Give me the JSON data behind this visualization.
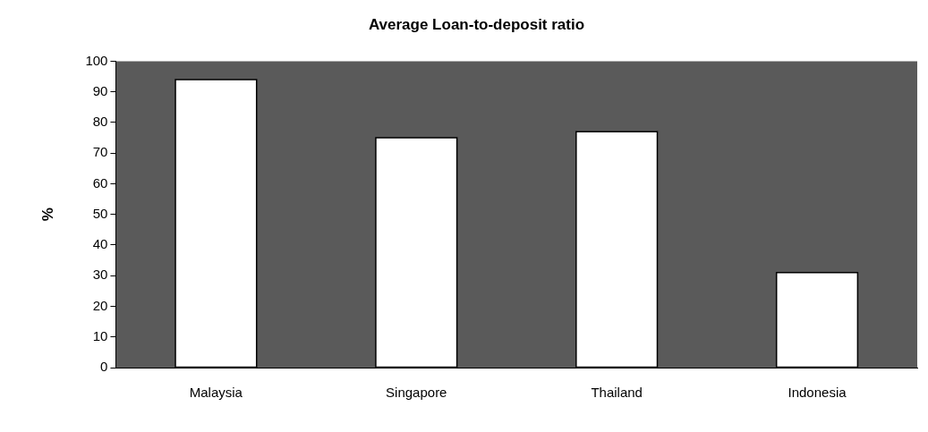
{
  "chart_data": {
    "type": "bar",
    "title": "Average Loan-to-deposit ratio",
    "ylabel": "%",
    "categories": [
      "Malaysia",
      "Singapore",
      "Thailand",
      "Indonesia"
    ],
    "values": [
      94,
      75,
      77,
      31
    ],
    "color": "#ffffff",
    "ylim": [
      0,
      100
    ],
    "yticks": [
      0,
      10,
      20,
      30,
      40,
      50,
      60,
      70,
      80,
      90,
      100
    ],
    "grid": false,
    "legend": false
  }
}
